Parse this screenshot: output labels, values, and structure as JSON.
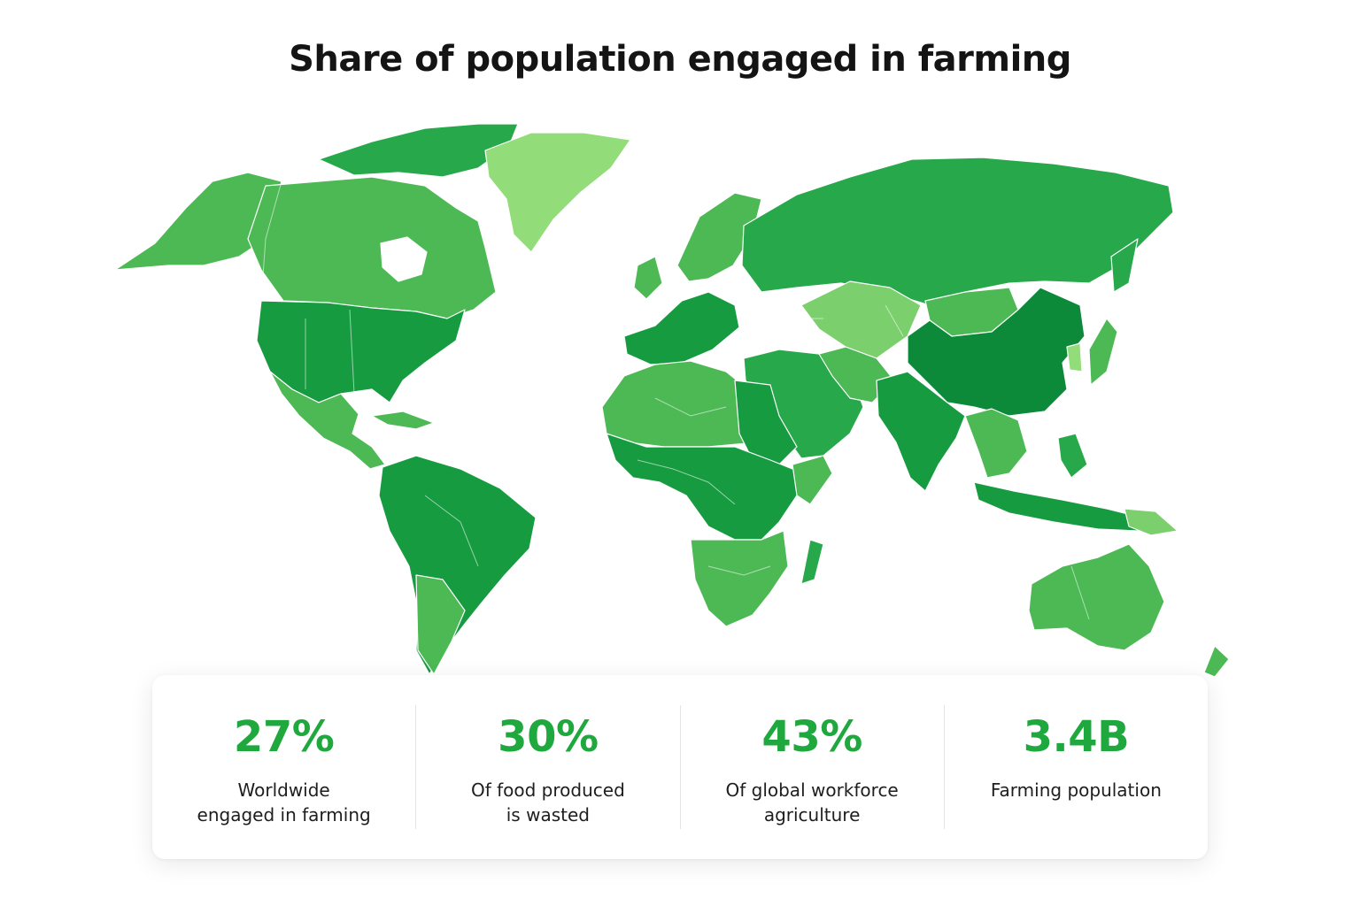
{
  "title": "Share of population engaged in farming",
  "colors": {
    "darkest": "#0c8a3a",
    "dark": "#169b40",
    "mid": "#27a84a",
    "medium_light": "#4cb955",
    "light": "#7bcf6c",
    "lightest": "#93dc7a",
    "accent": "#1fa83d"
  },
  "stats": [
    {
      "value": "27%",
      "label_line1": "Worldwide",
      "label_line2": "engaged in farming"
    },
    {
      "value": "30%",
      "label_line1": "Of food produced",
      "label_line2": "is wasted"
    },
    {
      "value": "43%",
      "label_line1": "Of global workforce",
      "label_line2": "agriculture"
    },
    {
      "value": "3.4B",
      "label_line1": "Farming population",
      "label_line2": ""
    }
  ]
}
